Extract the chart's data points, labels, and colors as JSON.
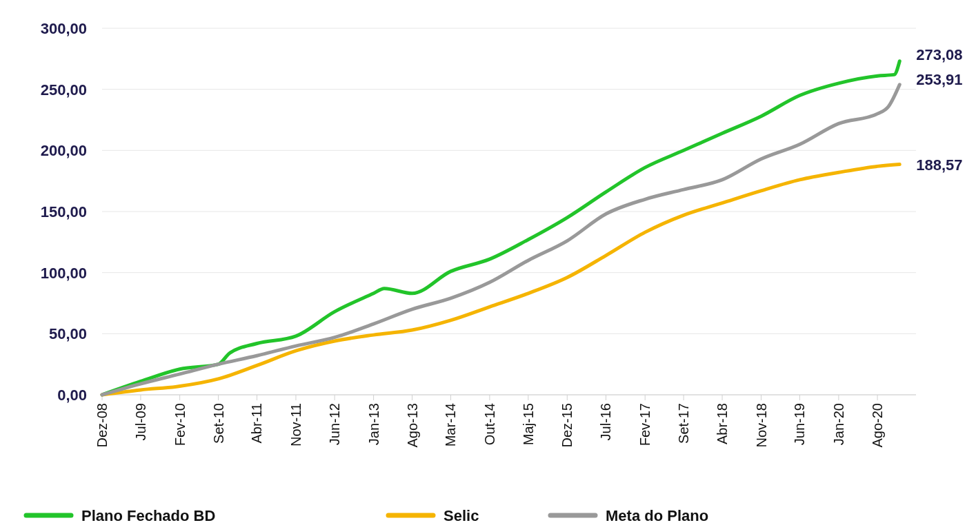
{
  "chart_data": {
    "type": "line",
    "xlim": [
      "2008-12",
      "2021-03"
    ],
    "ylim": [
      0,
      300
    ],
    "xticks": [
      {
        "value": "2008-12",
        "label": "Dez-08"
      },
      {
        "value": "2009-07",
        "label": "Jul-09"
      },
      {
        "value": "2010-02",
        "label": "Fev-10"
      },
      {
        "value": "2010-09",
        "label": "Set-10"
      },
      {
        "value": "2011-04",
        "label": "Abr-11"
      },
      {
        "value": "2011-11",
        "label": "Nov-11"
      },
      {
        "value": "2012-06",
        "label": "Jun-12"
      },
      {
        "value": "2013-01",
        "label": "Jan-13"
      },
      {
        "value": "2013-08",
        "label": "Ago-13"
      },
      {
        "value": "2014-03",
        "label": "Mar-14"
      },
      {
        "value": "2014-10",
        "label": "Out-14"
      },
      {
        "value": "2015-05",
        "label": "Maj-15"
      },
      {
        "value": "2015-12",
        "label": "Dez-15"
      },
      {
        "value": "2016-07",
        "label": "Jul-16"
      },
      {
        "value": "2017-02",
        "label": "Fev-17"
      },
      {
        "value": "2017-09",
        "label": "Set-17"
      },
      {
        "value": "2018-04",
        "label": "Abr-18"
      },
      {
        "value": "2018-11",
        "label": "Nov-18"
      },
      {
        "value": "2019-06",
        "label": "Jun-19"
      },
      {
        "value": "2020-01",
        "label": "Jan-20"
      },
      {
        "value": "2020-08",
        "label": "Ago-20"
      }
    ],
    "yticks": [
      {
        "value": 0,
        "label": "0,00"
      },
      {
        "value": 50,
        "label": "50,00"
      },
      {
        "value": 100,
        "label": "100,00"
      },
      {
        "value": 150,
        "label": "150,00"
      },
      {
        "value": 200,
        "label": "200,00"
      },
      {
        "value": 250,
        "label": "250,00"
      },
      {
        "value": 300,
        "label": "300,00"
      }
    ],
    "grid": "y",
    "legend": "bottom",
    "series": [
      {
        "name": "Plano Fechado BD",
        "color": "#22c42a",
        "x": [
          "2008-12",
          "2009-07",
          "2010-02",
          "2010-09",
          "2010-11",
          "2011-04",
          "2011-11",
          "2012-06",
          "2013-01",
          "2013-03",
          "2013-08",
          "2014-03",
          "2014-10",
          "2015-05",
          "2015-12",
          "2016-07",
          "2017-02",
          "2017-09",
          "2018-04",
          "2018-11",
          "2019-06",
          "2020-01",
          "2020-08",
          "2020-11",
          "2020-12"
        ],
        "values": [
          0,
          11,
          21,
          25,
          34,
          42,
          48,
          68,
          83,
          87,
          83,
          101,
          111,
          127,
          145,
          166,
          186,
          200,
          214,
          228,
          245,
          255,
          261,
          262,
          273.08
        ],
        "value_labels": [
          null,
          null,
          null,
          null,
          null,
          null,
          null,
          null,
          null,
          null,
          null,
          null,
          null,
          null,
          null,
          null,
          null,
          null,
          null,
          null,
          null,
          null,
          null,
          null,
          "273,08"
        ]
      },
      {
        "name": "Selic",
        "color": "#f5b400",
        "x": [
          "2008-12",
          "2009-07",
          "2010-02",
          "2010-09",
          "2011-04",
          "2011-11",
          "2012-06",
          "2013-01",
          "2013-08",
          "2014-03",
          "2014-10",
          "2015-05",
          "2015-12",
          "2016-07",
          "2017-02",
          "2017-09",
          "2018-04",
          "2018-11",
          "2019-06",
          "2020-01",
          "2020-08",
          "2020-12"
        ],
        "values": [
          0,
          4,
          7,
          13,
          24,
          36,
          44,
          49,
          53,
          61,
          72,
          83,
          96,
          114,
          133,
          147,
          157,
          167,
          176,
          182,
          187,
          188.57
        ],
        "value_labels": [
          null,
          null,
          null,
          null,
          null,
          null,
          null,
          null,
          null,
          null,
          null,
          null,
          null,
          null,
          null,
          null,
          null,
          null,
          null,
          null,
          null,
          "188,57"
        ]
      },
      {
        "name": "Meta do Plano",
        "color": "#999999",
        "x": [
          "2008-12",
          "2009-07",
          "2010-02",
          "2010-09",
          "2011-04",
          "2011-11",
          "2012-06",
          "2013-01",
          "2013-08",
          "2014-03",
          "2014-10",
          "2015-05",
          "2015-12",
          "2016-07",
          "2017-02",
          "2017-09",
          "2018-04",
          "2018-11",
          "2019-06",
          "2020-01",
          "2020-08",
          "2020-10",
          "2020-12"
        ],
        "values": [
          0,
          9,
          17,
          25,
          32,
          40,
          47,
          58,
          70,
          79,
          92,
          110,
          126,
          148,
          160,
          168,
          176,
          193,
          205,
          222,
          230,
          236,
          253.91
        ],
        "value_labels": [
          null,
          null,
          null,
          null,
          null,
          null,
          null,
          null,
          null,
          null,
          null,
          null,
          null,
          null,
          null,
          null,
          null,
          null,
          null,
          null,
          null,
          null,
          "253,91"
        ]
      }
    ]
  }
}
